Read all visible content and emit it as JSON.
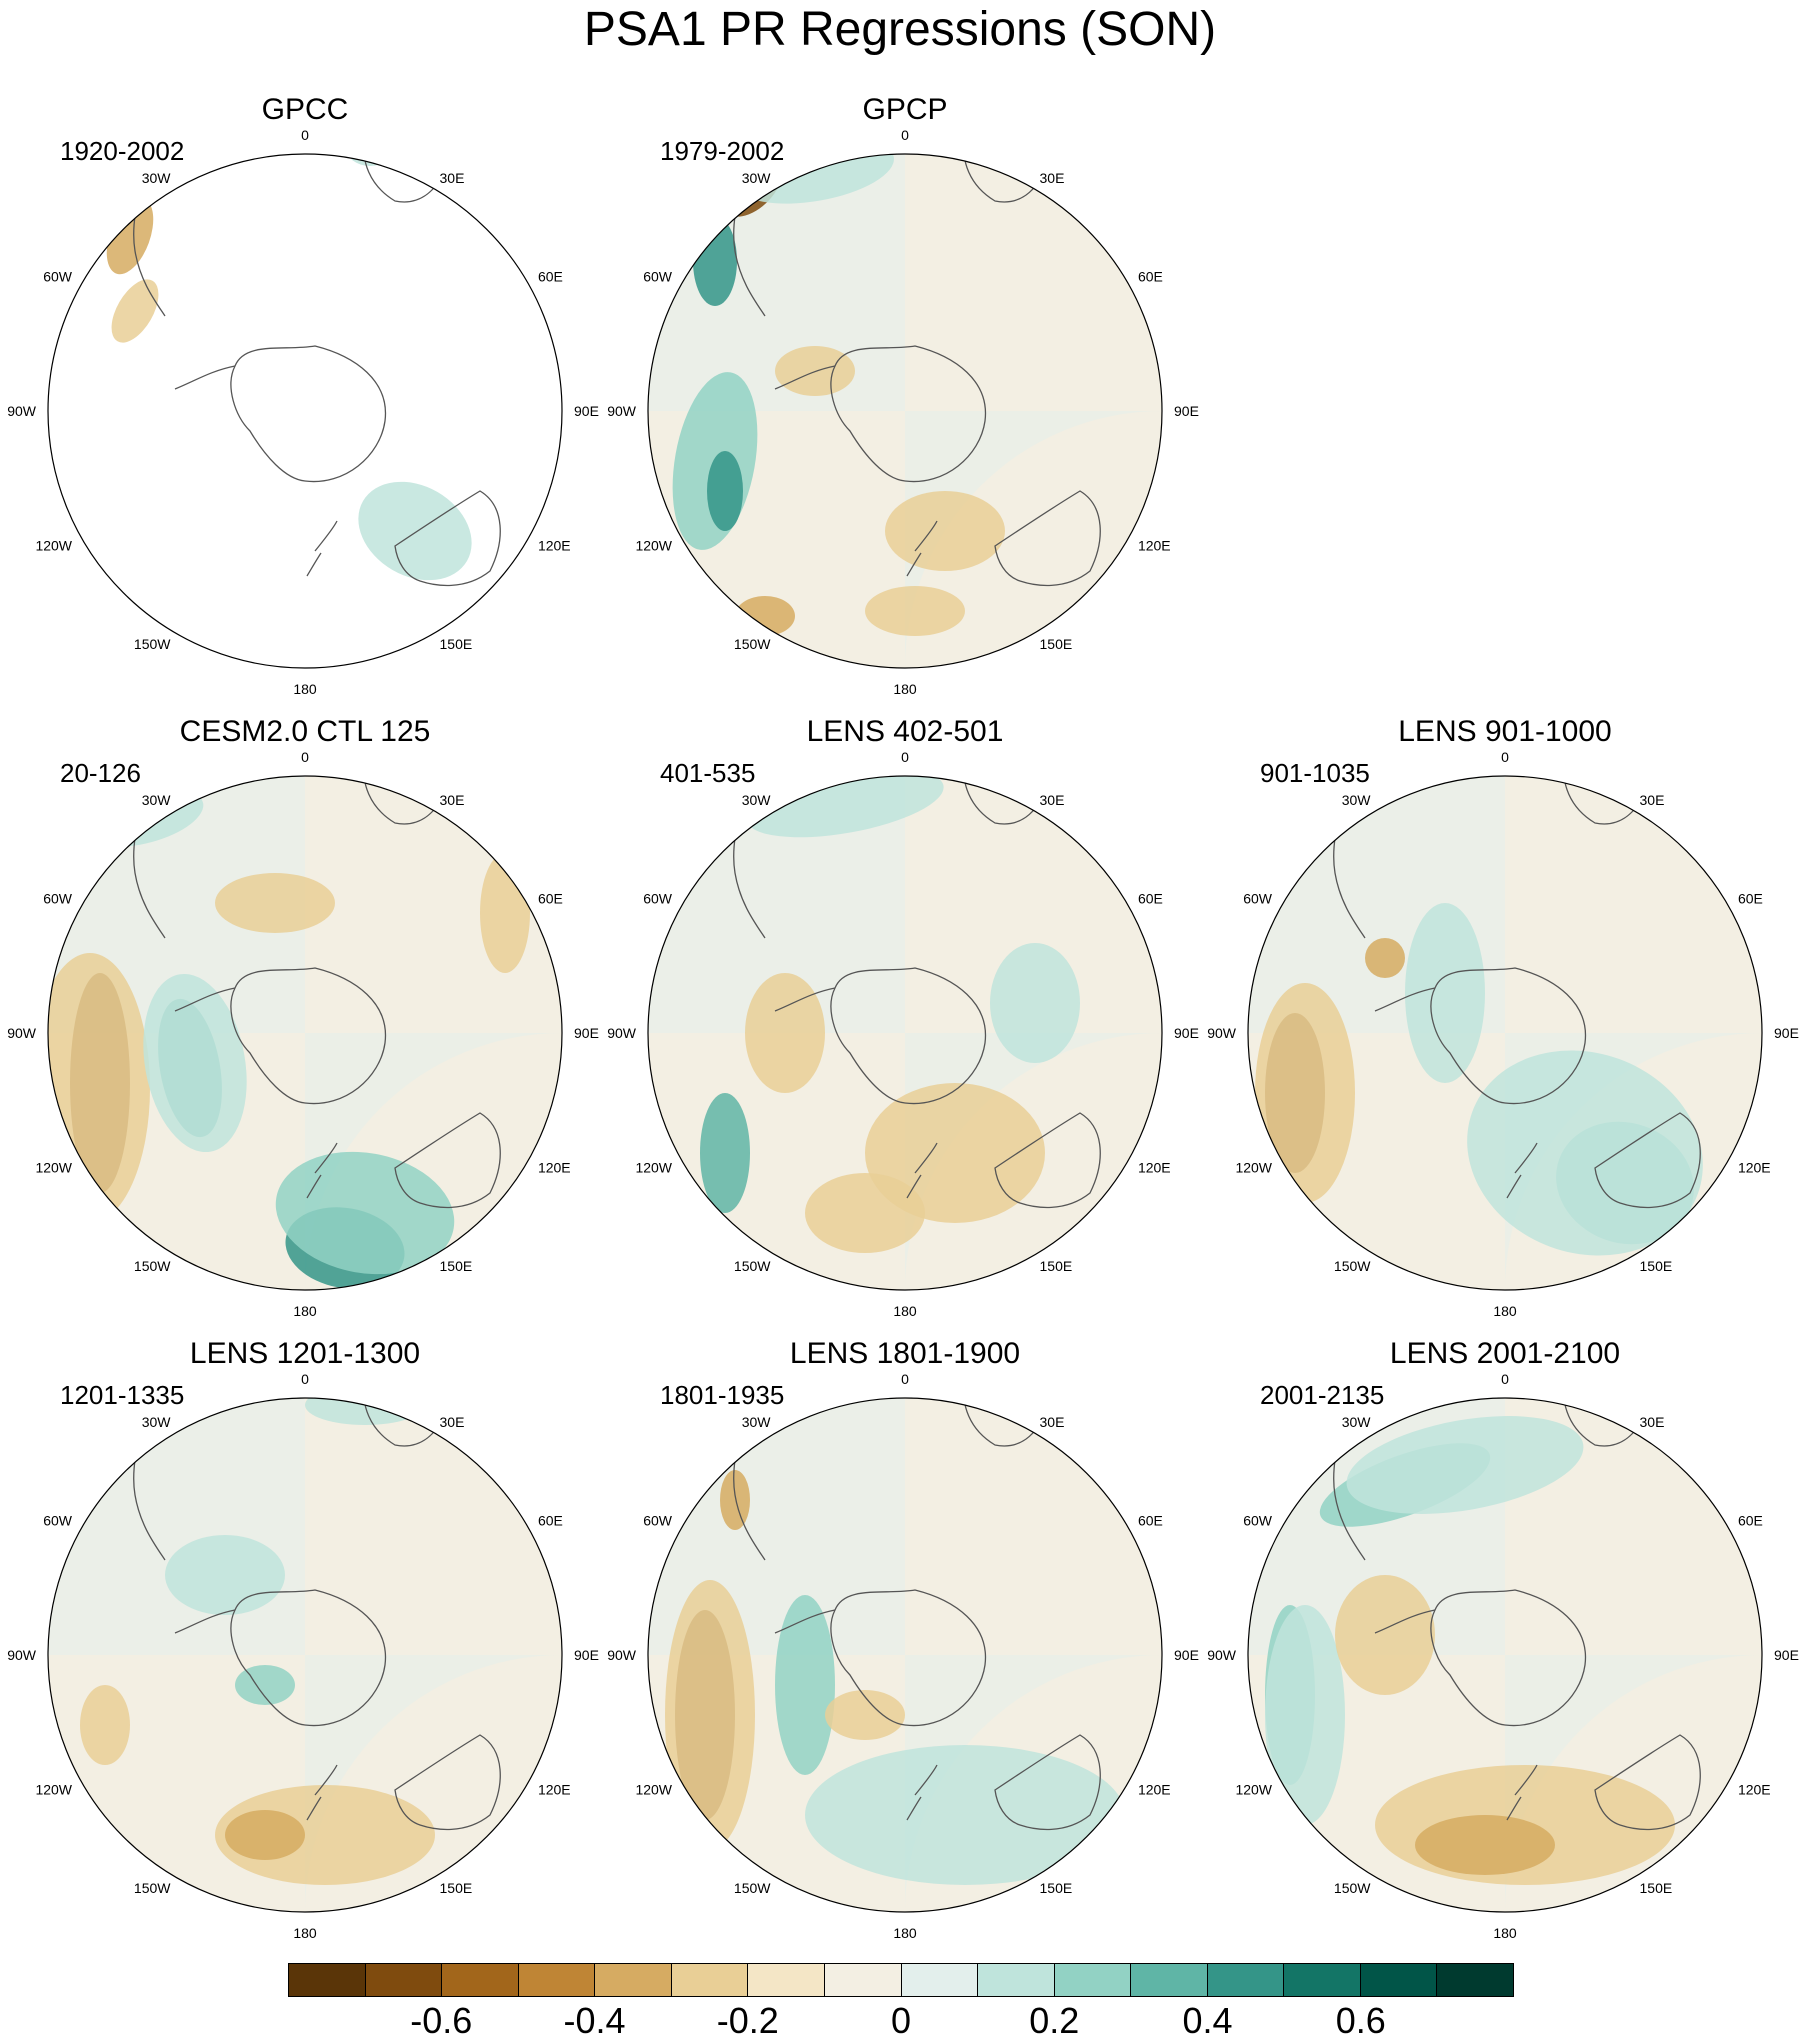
{
  "title": "PSA1 PR Regressions (SON)",
  "panels": [
    {
      "id": "gpcc",
      "name": "GPCC",
      "period": "1920-2002"
    },
    {
      "id": "gpcp",
      "name": "GPCP",
      "period": "1979-2002"
    },
    {
      "id": "cesm2",
      "name": "CESM2.0 CTL 125",
      "period": "20-126"
    },
    {
      "id": "lens402",
      "name": "LENS 402-501",
      "period": "401-535"
    },
    {
      "id": "lens901",
      "name": "LENS 901-1000",
      "period": "901-1035"
    },
    {
      "id": "lens1201",
      "name": "LENS 1201-1300",
      "period": "1201-1335"
    },
    {
      "id": "lens1801",
      "name": "LENS 1801-1900",
      "period": "1801-1935"
    },
    {
      "id": "lens2001",
      "name": "LENS 2001-2100",
      "period": "2001-2135"
    }
  ],
  "longitude_labels": [
    "0",
    "30E",
    "60E",
    "90E",
    "120E",
    "150E",
    "180",
    "150W",
    "120W",
    "90W",
    "60W",
    "30W"
  ],
  "colorbar": {
    "colors": [
      "#5a3508",
      "#7f4b0e",
      "#a2661b",
      "#bf8535",
      "#d6ab62",
      "#e9cf96",
      "#f4e6c6",
      "#f3efe3",
      "#e3efec",
      "#bfe4dc",
      "#92d2c4",
      "#5fb5a6",
      "#349588",
      "#137566",
      "#015548",
      "#003a2f"
    ],
    "tick_labels": [
      "-0.6",
      "-0.4",
      "-0.2",
      "0",
      "0.2",
      "0.4",
      "0.6"
    ]
  }
}
